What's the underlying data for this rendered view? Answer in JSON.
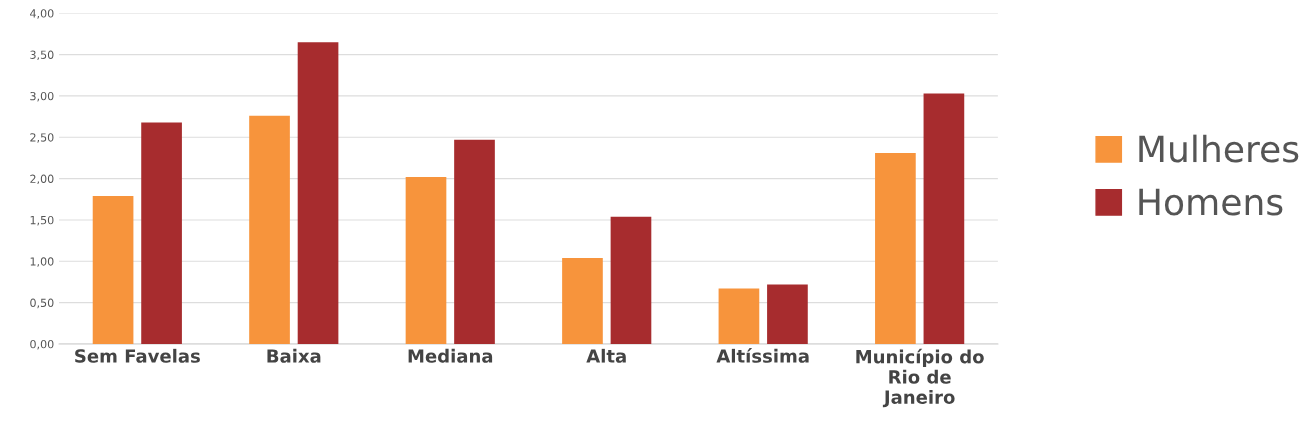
{
  "chart_data": {
    "type": "bar",
    "categories": [
      "Sem Favelas",
      "Baixa",
      "Mediana",
      "Alta",
      "Altíssima",
      "Município do Rio de Janeiro"
    ],
    "series": [
      {
        "name": "Mulheres",
        "color": "#f7943c",
        "values": [
          1.79,
          2.76,
          2.02,
          1.04,
          0.67,
          2.31
        ]
      },
      {
        "name": "Homens",
        "color": "#a72c2e",
        "values": [
          2.68,
          3.65,
          2.47,
          1.54,
          0.72,
          3.03
        ]
      }
    ],
    "ylim": [
      0,
      4
    ],
    "yticks": [
      {
        "value": 0,
        "label": "0,00"
      },
      {
        "value": 0.5,
        "label": "0,50"
      },
      {
        "value": 1,
        "label": "1,00"
      },
      {
        "value": 1.5,
        "label": "1,50"
      },
      {
        "value": 2,
        "label": "2,00"
      },
      {
        "value": 2.5,
        "label": "2,50"
      },
      {
        "value": 3,
        "label": "3,00"
      },
      {
        "value": 3.5,
        "label": "3,50"
      },
      {
        "value": 4,
        "label": "4,00"
      }
    ],
    "grid": "y",
    "legend": "right"
  }
}
